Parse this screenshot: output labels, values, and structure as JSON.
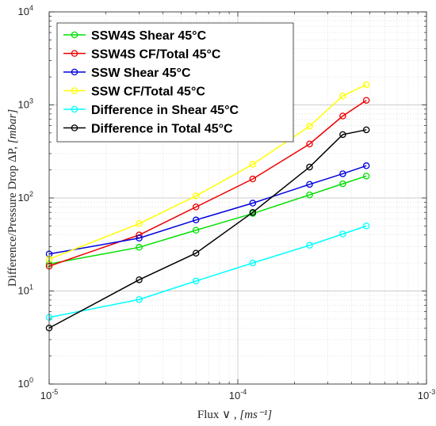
{
  "chart_data": {
    "type": "line",
    "x_scale": "log",
    "y_scale": "log",
    "xlim": [
      1e-05,
      0.001
    ],
    "ylim": [
      1,
      10000
    ],
    "grid": true,
    "minor_grid": true,
    "legend_position": "top-left",
    "xlabel": {
      "main": "Flux ∨ , ",
      "unit": "[ms⁻¹]"
    },
    "ylabel": {
      "main": "Difference/Pressure Drop ΔP, ",
      "unit": "[mbar]"
    },
    "x_ticks": [
      {
        "value": 1e-05,
        "base": "10",
        "exp": "-5"
      },
      {
        "value": 0.0001,
        "base": "10",
        "exp": "-4"
      },
      {
        "value": 0.001,
        "base": "10",
        "exp": "-3"
      }
    ],
    "y_ticks": [
      {
        "value": 1,
        "base": "10",
        "exp": "0"
      },
      {
        "value": 10,
        "base": "10",
        "exp": "1"
      },
      {
        "value": 100,
        "base": "10",
        "exp": "2"
      },
      {
        "value": 1000,
        "base": "10",
        "exp": "3"
      },
      {
        "value": 10000,
        "base": "10",
        "exp": "4"
      }
    ],
    "x": [
      1e-05,
      3e-05,
      6e-05,
      0.00012,
      0.00024,
      0.00036,
      0.00048
    ],
    "series": [
      {
        "name": "SSW4S Shear 45°C",
        "color": "#00e000",
        "values": [
          19.5,
          29.5,
          45,
          68,
          108,
          142,
          172
        ]
      },
      {
        "name": "SSW4S CF/Total 45°C",
        "color": "#ee0000",
        "values": [
          18.5,
          40,
          80,
          160,
          380,
          760,
          1120
        ]
      },
      {
        "name": "SSW Shear 45°C",
        "color": "#0000dd",
        "values": [
          25,
          37,
          58,
          88,
          140,
          182,
          222
        ]
      },
      {
        "name": "SSW CF/Total 45°C",
        "color": "#ffff00",
        "values": [
          22,
          53,
          105,
          230,
          590,
          1250,
          1650
        ]
      },
      {
        "name": "Difference in Shear 45°C",
        "color": "#00ffff",
        "values": [
          5.2,
          8.1,
          12.8,
          20,
          31,
          41,
          50
        ]
      },
      {
        "name": "Difference in Total 45°C",
        "color": "#000000",
        "values": [
          4,
          13.2,
          25.5,
          70,
          215,
          480,
          540
        ]
      }
    ]
  }
}
